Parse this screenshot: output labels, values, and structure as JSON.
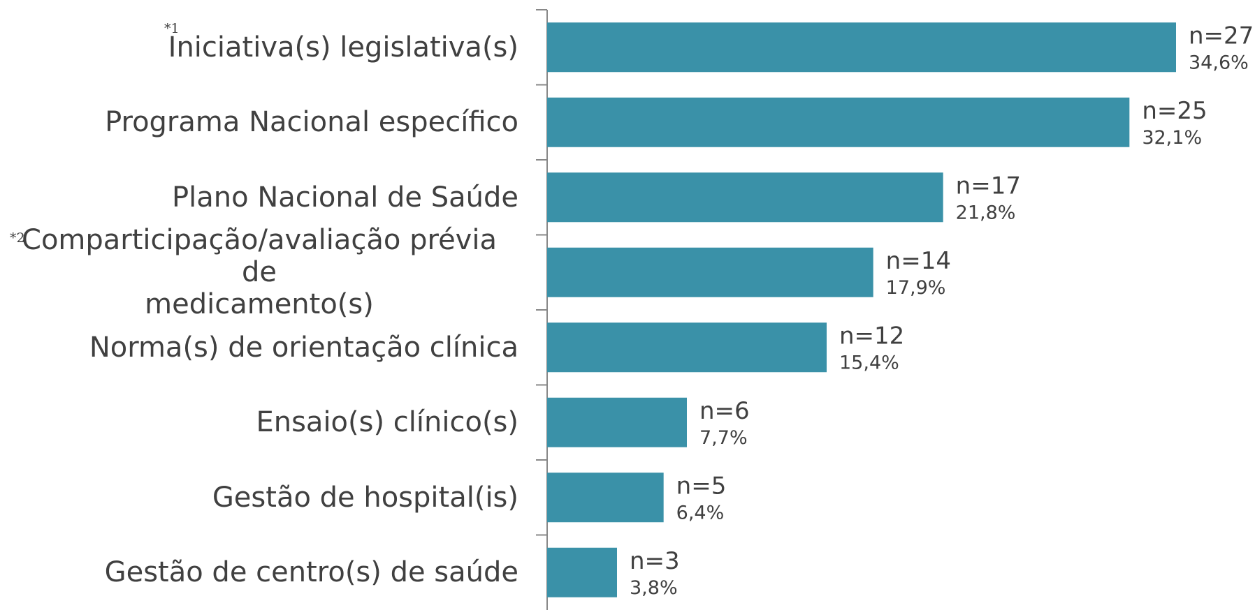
{
  "chart_data": {
    "type": "bar",
    "orientation": "horizontal",
    "categories": [
      "Iniciativa(s) legislativa(s)",
      "Programa Nacional específico",
      "Plano Nacional de Saúde",
      "Comparticipação/avaliação prévia de\nmedicamento(s)",
      "Norma(s) de orientação clínica",
      "Ensaio(s) clínico(s)",
      "Gestão de hospital(is)",
      "Gestão de centro(s) de saúde"
    ],
    "values": [
      27,
      25,
      17,
      14,
      12,
      6,
      5,
      3
    ],
    "value_labels": [
      "n=27",
      "n=25",
      "n=17",
      "n=14",
      "n=12",
      "n=6",
      "n=5",
      "n=3"
    ],
    "percentages": [
      34.6,
      32.1,
      21.8,
      17.9,
      15.4,
      7.7,
      6.4,
      3.8
    ],
    "percentage_labels": [
      "34,6%",
      "32,1%",
      "21,8%",
      "17,9%",
      "15,4%",
      "7,7%",
      "6,4%",
      "3,8%"
    ],
    "annotations": [
      "*1",
      "*2"
    ],
    "color": "#3a91a8"
  }
}
